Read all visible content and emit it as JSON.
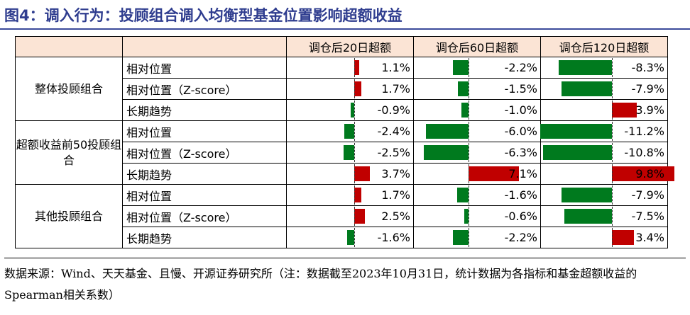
{
  "title": "图4：调入行为：投顾组合调入均衡型基金位置影响超额收益",
  "headers": [
    "调仓后20日超额",
    "调仓后60日超额",
    "调仓后120日超额"
  ],
  "groups": [
    {
      "name": "整体投顾组合",
      "rows": [
        {
          "metric": "相对位置",
          "values": [
            "1.1%",
            "-2.2%",
            "-8.3%"
          ],
          "nums": [
            1.1,
            -2.2,
            -8.3
          ]
        },
        {
          "metric": "相对位置（Z-score）",
          "values": [
            "1.7%",
            "-1.5%",
            "-7.9%"
          ],
          "nums": [
            1.7,
            -1.5,
            -7.9
          ]
        },
        {
          "metric": "长期趋势",
          "values": [
            "-0.9%",
            "-1.0%",
            "3.9%"
          ],
          "nums": [
            -0.9,
            -1.0,
            3.9
          ]
        }
      ]
    },
    {
      "name": "超额收益前50投顾组合",
      "rows": [
        {
          "metric": "相对位置",
          "values": [
            "-2.4%",
            "-6.0%",
            "-11.2%"
          ],
          "nums": [
            -2.4,
            -6.0,
            -11.2
          ]
        },
        {
          "metric": "相对位置（Z-score）",
          "values": [
            "-2.5%",
            "-6.3%",
            "-10.8%"
          ],
          "nums": [
            -2.5,
            -6.3,
            -10.8
          ]
        },
        {
          "metric": "长期趋势",
          "values": [
            "3.7%",
            "7.1%",
            "9.8%"
          ],
          "nums": [
            3.7,
            7.1,
            9.8
          ]
        }
      ]
    },
    {
      "name": "其他投顾组合",
      "rows": [
        {
          "metric": "相对位置",
          "values": [
            "1.7%",
            "-1.6%",
            "-7.9%"
          ],
          "nums": [
            1.7,
            -1.6,
            -7.9
          ]
        },
        {
          "metric": "相对位置（Z-score）",
          "values": [
            "2.5%",
            "-0.6%",
            "-7.5%"
          ],
          "nums": [
            2.5,
            -0.6,
            -7.5
          ]
        },
        {
          "metric": "长期趋势",
          "values": [
            "-1.6%",
            "-2.2%",
            "3.4%"
          ],
          "nums": [
            -1.6,
            -2.2,
            3.4
          ]
        }
      ]
    }
  ],
  "colors": {
    "positive": "#c00000",
    "negative": "#007a1e",
    "header_bg": "#fbe4d5",
    "title": "#2f3d8f"
  },
  "note": "数据来源：Wind、天天基金、且慢、开源证券研究所（注：数据截至2023年10月31日，统计数据为各指标和基金超额收益的Spearman相关系数）"
}
